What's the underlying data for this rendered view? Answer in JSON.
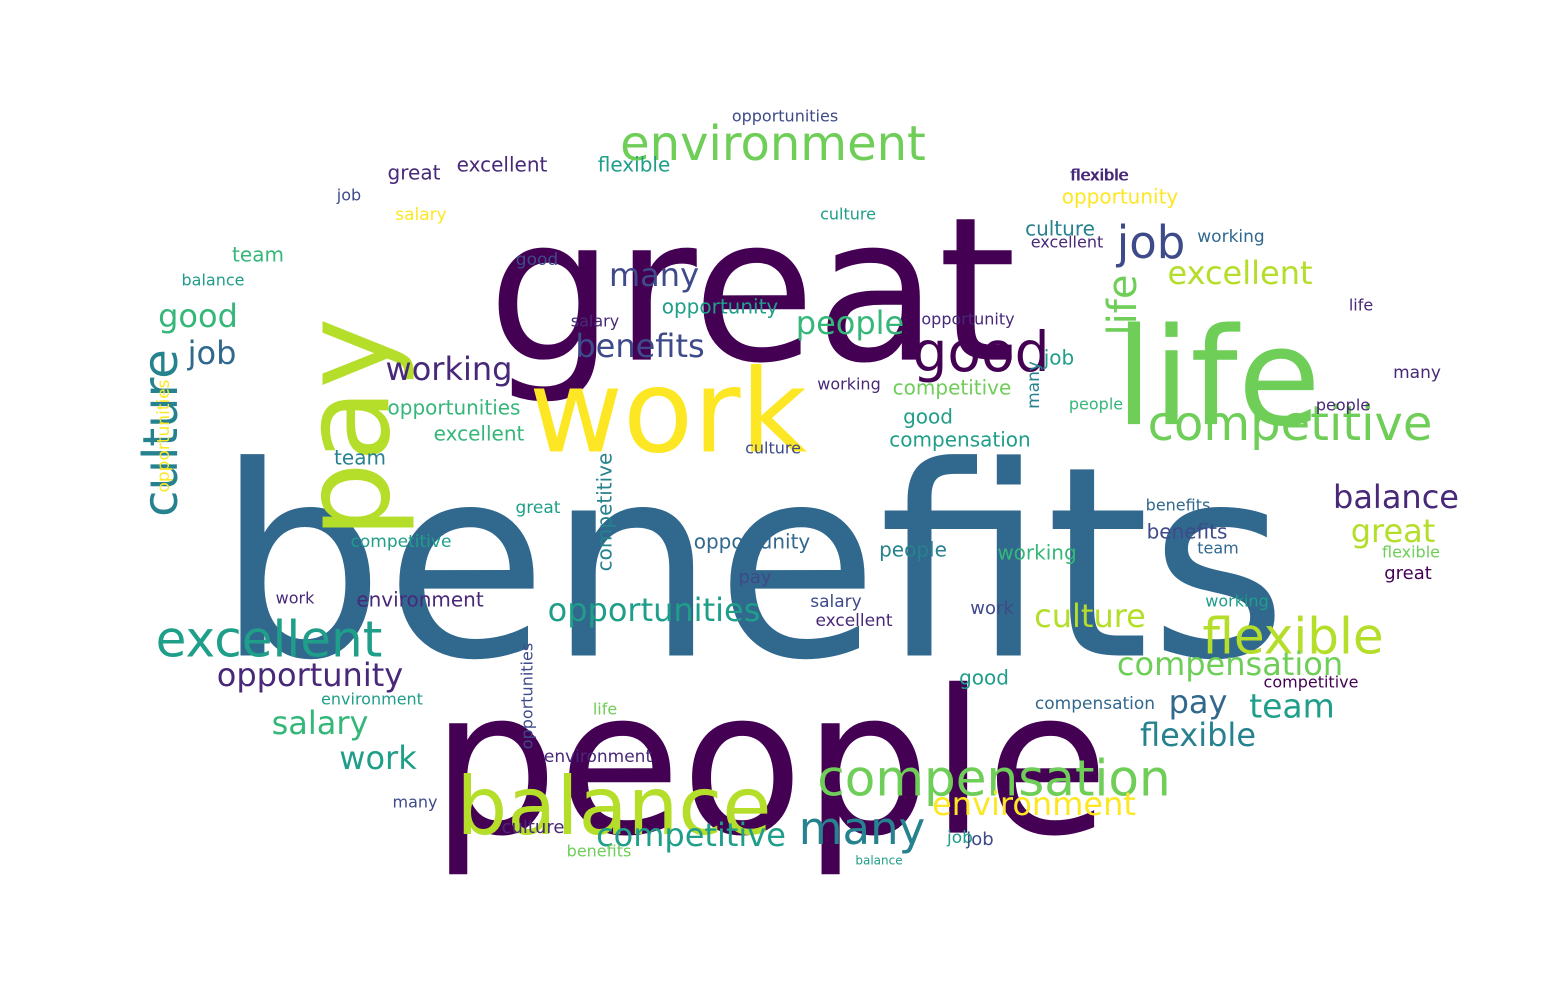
{
  "background": "#ffffff",
  "palette": {
    "p1": "#440154",
    "p2": "#482878",
    "p3": "#3e4a89",
    "p4": "#31688e",
    "p5": "#26828e",
    "p6": "#1f9e89",
    "p7": "#35b779",
    "p8": "#6ece58",
    "p9": "#b5de2b",
    "p10": "#fde725"
  },
  "words": [
    {
      "text": "benefits"
    },
    {
      "text": "great"
    },
    {
      "text": "people"
    },
    {
      "text": "work"
    },
    {
      "text": "life"
    },
    {
      "text": "pay"
    },
    {
      "text": "balance"
    },
    {
      "text": "environment"
    },
    {
      "text": "competitive"
    },
    {
      "text": "compensation"
    },
    {
      "text": "excellent"
    },
    {
      "text": "flexible"
    },
    {
      "text": "opportunities"
    },
    {
      "text": "culture"
    },
    {
      "text": "good"
    },
    {
      "text": "job"
    },
    {
      "text": "many"
    },
    {
      "text": "working"
    },
    {
      "text": "opportunity"
    },
    {
      "text": "salary"
    },
    {
      "text": "team"
    },
    {
      "text": "benefits"
    },
    {
      "text": "people"
    },
    {
      "text": "excellent"
    },
    {
      "text": "competitive"
    },
    {
      "text": "many"
    },
    {
      "text": "compensation"
    },
    {
      "text": "flexible"
    },
    {
      "text": "balance"
    },
    {
      "text": "great"
    },
    {
      "text": "culture"
    },
    {
      "text": "pay"
    },
    {
      "text": "team"
    },
    {
      "text": "environment"
    },
    {
      "text": "opportunities"
    },
    {
      "text": "salary"
    },
    {
      "text": "work"
    },
    {
      "text": "job"
    },
    {
      "text": "good"
    },
    {
      "text": "opportunity"
    },
    {
      "text": "many"
    },
    {
      "text": "job"
    },
    {
      "text": "good"
    },
    {
      "text": "life"
    },
    {
      "text": "culture"
    },
    {
      "text": "working"
    },
    {
      "text": "excellent"
    },
    {
      "text": "opportunities"
    },
    {
      "text": "competitive"
    },
    {
      "text": "flexible"
    },
    {
      "text": "opportunities"
    },
    {
      "text": "excellent"
    },
    {
      "text": "flexible"
    },
    {
      "text": "great"
    },
    {
      "text": "job"
    },
    {
      "text": "team"
    },
    {
      "text": "balance"
    },
    {
      "text": "good"
    },
    {
      "text": "salary"
    },
    {
      "text": "working"
    },
    {
      "text": "people"
    },
    {
      "text": "flexible"
    },
    {
      "text": "opportunity"
    },
    {
      "text": "culture"
    },
    {
      "text": "excellent"
    },
    {
      "text": "working"
    },
    {
      "text": "life"
    },
    {
      "text": "benefits"
    },
    {
      "text": "opportunity"
    },
    {
      "text": "people"
    },
    {
      "text": "great"
    },
    {
      "text": "competitive"
    },
    {
      "text": "job"
    },
    {
      "text": "culture"
    },
    {
      "text": "many"
    },
    {
      "text": "compensation"
    },
    {
      "text": "environment"
    },
    {
      "text": "working"
    },
    {
      "text": "benefits"
    },
    {
      "text": "work"
    },
    {
      "text": "environment"
    },
    {
      "text": "salary"
    },
    {
      "text": "opportunity"
    },
    {
      "text": "excellent"
    },
    {
      "text": "competitive"
    },
    {
      "text": "compensation"
    },
    {
      "text": "environment"
    },
    {
      "text": "life"
    },
    {
      "text": "good"
    },
    {
      "text": "many"
    },
    {
      "text": "culture"
    },
    {
      "text": "competitive"
    },
    {
      "text": "job"
    },
    {
      "text": "opportunities"
    },
    {
      "text": "benefits"
    },
    {
      "text": "balance"
    },
    {
      "text": "team"
    },
    {
      "text": "great"
    },
    {
      "text": "flexible"
    },
    {
      "text": "people"
    },
    {
      "text": "work"
    },
    {
      "text": "pay"
    }
  ]
}
